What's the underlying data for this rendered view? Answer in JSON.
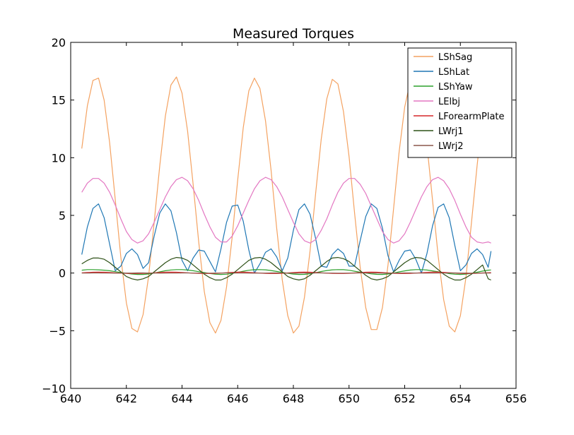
{
  "chart_data": {
    "type": "line",
    "title": "Measured Torques",
    "xlabel": "",
    "ylabel": "",
    "xlim": [
      640,
      656
    ],
    "ylim": [
      -10,
      20
    ],
    "xticks": [
      640,
      642,
      644,
      646,
      648,
      650,
      652,
      654,
      656
    ],
    "yticks": [
      -10,
      -5,
      0,
      5,
      10,
      15,
      20
    ],
    "xtick_labels": [
      "640",
      "642",
      "644",
      "646",
      "648",
      "650",
      "652",
      "654",
      "656"
    ],
    "ytick_labels": [
      "−10",
      "−5",
      "0",
      "5",
      "10",
      "15",
      "20"
    ],
    "grid": false,
    "legend_position": "top-right",
    "x": [
      640.4,
      640.6,
      640.8,
      641.0,
      641.2,
      641.4,
      641.6,
      641.8,
      642.0,
      642.2,
      642.4,
      642.6,
      642.8,
      643.0,
      643.2,
      643.4,
      643.6,
      643.8,
      644.0,
      644.2,
      644.4,
      644.6,
      644.8,
      645.0,
      645.2,
      645.4,
      645.6,
      645.8,
      646.0,
      646.2,
      646.4,
      646.6,
      646.8,
      647.0,
      647.2,
      647.4,
      647.6,
      647.8,
      648.0,
      648.2,
      648.4,
      648.6,
      648.8,
      649.0,
      649.2,
      649.4,
      649.6,
      649.8,
      650.0,
      650.2,
      650.4,
      650.6,
      650.8,
      651.0,
      651.2,
      651.4,
      651.6,
      651.8,
      652.0,
      652.2,
      652.4,
      652.6,
      652.8,
      653.0,
      653.2,
      653.4,
      653.6,
      653.8,
      654.0,
      654.2,
      654.4,
      654.6,
      654.8,
      655.0,
      655.1
    ],
    "series": [
      {
        "name": "LShSag",
        "color": "#f4a261",
        "values": [
          10.8,
          14.5,
          16.7,
          16.9,
          15.0,
          11.3,
          6.4,
          1.4,
          -2.6,
          -4.8,
          -5.1,
          -3.6,
          -0.3,
          4.4,
          9.3,
          13.6,
          16.3,
          17.0,
          15.6,
          12.3,
          7.7,
          2.7,
          -1.6,
          -4.3,
          -5.2,
          -4.1,
          -1.2,
          3.1,
          8.1,
          12.6,
          15.8,
          16.9,
          16.0,
          13.2,
          8.9,
          3.9,
          -0.6,
          -3.7,
          -5.2,
          -4.6,
          -2.1,
          1.9,
          6.9,
          11.6,
          15.1,
          16.8,
          16.4,
          14.0,
          10.1,
          5.2,
          0.5,
          -3.0,
          -4.9,
          -4.9,
          -3.0,
          0.7,
          5.6,
          10.5,
          14.4,
          16.6,
          16.6,
          14.7,
          11.1,
          6.3,
          1.5,
          -2.3,
          -4.6,
          -5.1,
          -3.7,
          -0.4,
          4.4,
          9.3,
          13.6,
          16.3,
          12.6
        ]
      },
      {
        "name": "LShLat",
        "color": "#1f77b4",
        "values": [
          1.6,
          4.0,
          5.6,
          6.0,
          4.8,
          2.5,
          0.2,
          0.6,
          1.7,
          2.1,
          1.6,
          0.4,
          0.9,
          3.2,
          5.2,
          6.0,
          5.4,
          3.5,
          1.1,
          0.2,
          1.3,
          2.0,
          1.9,
          1.0,
          0.1,
          2.1,
          4.4,
          5.8,
          5.9,
          4.5,
          2.0,
          0.0,
          0.8,
          1.8,
          2.1,
          1.4,
          0.2,
          1.3,
          3.7,
          5.5,
          6.0,
          5.1,
          3.0,
          0.6,
          0.5,
          1.6,
          2.1,
          1.7,
          0.6,
          0.6,
          2.8,
          4.9,
          6.0,
          5.6,
          3.9,
          1.5,
          0.1,
          1.1,
          1.9,
          2.0,
          1.2,
          0.0,
          1.7,
          4.1,
          5.7,
          6.0,
          4.8,
          2.4,
          0.2,
          0.7,
          1.7,
          2.1,
          1.6,
          0.5,
          1.9
        ]
      },
      {
        "name": "LShYaw",
        "color": "#2ca02c",
        "values": [
          0.25,
          0.3,
          0.3,
          0.28,
          0.25,
          0.2,
          0.12,
          0.05,
          -0.02,
          -0.08,
          -0.12,
          -0.12,
          -0.08,
          0.0,
          0.1,
          0.2,
          0.27,
          0.3,
          0.3,
          0.26,
          0.2,
          0.12,
          0.04,
          -0.04,
          -0.1,
          -0.12,
          -0.1,
          -0.04,
          0.06,
          0.16,
          0.24,
          0.29,
          0.3,
          0.28,
          0.22,
          0.14,
          0.06,
          -0.02,
          -0.09,
          -0.12,
          -0.11,
          -0.06,
          0.03,
          0.13,
          0.22,
          0.28,
          0.3,
          0.29,
          0.24,
          0.16,
          0.08,
          0.0,
          -0.07,
          -0.11,
          -0.12,
          -0.08,
          0.0,
          0.1,
          0.19,
          0.26,
          0.3,
          0.3,
          0.26,
          0.19,
          0.11,
          0.03,
          -0.05,
          -0.1,
          -0.12,
          -0.09,
          -0.02,
          0.07,
          0.17,
          0.25,
          0.27
        ]
      },
      {
        "name": "LElbj",
        "color": "#e377c2",
        "values": [
          7.0,
          7.8,
          8.2,
          8.2,
          7.8,
          7.0,
          5.9,
          4.7,
          3.6,
          2.9,
          2.6,
          2.8,
          3.4,
          4.4,
          5.5,
          6.6,
          7.5,
          8.1,
          8.3,
          8.0,
          7.3,
          6.3,
          5.1,
          4.0,
          3.1,
          2.7,
          2.7,
          3.2,
          4.1,
          5.2,
          6.3,
          7.3,
          8.0,
          8.3,
          8.1,
          7.5,
          6.6,
          5.5,
          4.4,
          3.4,
          2.8,
          2.6,
          2.9,
          3.7,
          4.7,
          5.9,
          7.0,
          7.8,
          8.2,
          8.2,
          7.7,
          6.9,
          5.8,
          4.7,
          3.6,
          2.9,
          2.6,
          2.8,
          3.4,
          4.4,
          5.5,
          6.6,
          7.5,
          8.1,
          8.3,
          8.0,
          7.3,
          6.3,
          5.1,
          4.0,
          3.1,
          2.7,
          2.6,
          2.7,
          2.6
        ]
      },
      {
        "name": "LForearmPlate",
        "color": "#d62728",
        "values": [
          0.02,
          0.05,
          0.07,
          0.08,
          0.07,
          0.05,
          0.02,
          -0.01,
          -0.03,
          -0.04,
          -0.04,
          -0.03,
          -0.01,
          0.02,
          0.05,
          0.07,
          0.08,
          0.07,
          0.05,
          0.02,
          -0.01,
          -0.03,
          -0.04,
          -0.04,
          -0.03,
          0.0,
          0.03,
          0.06,
          0.08,
          0.08,
          0.06,
          0.03,
          0.0,
          -0.03,
          -0.04,
          -0.04,
          -0.02,
          0.01,
          0.04,
          0.07,
          0.08,
          0.07,
          0.05,
          0.02,
          -0.01,
          -0.03,
          -0.04,
          -0.04,
          -0.02,
          0.01,
          0.04,
          0.07,
          0.08,
          0.07,
          0.04,
          0.01,
          -0.02,
          -0.04,
          -0.04,
          -0.03,
          0.0,
          0.03,
          0.06,
          0.08,
          0.08,
          0.06,
          0.03,
          0.0,
          -0.03,
          -0.04,
          -0.04,
          -0.02,
          0.01,
          0.03,
          0.04
        ]
      },
      {
        "name": "LWrj1",
        "color": "#2d5016",
        "values": [
          0.8,
          1.1,
          1.3,
          1.3,
          1.2,
          0.9,
          0.5,
          0.1,
          -0.3,
          -0.5,
          -0.6,
          -0.5,
          -0.3,
          0.1,
          0.5,
          0.9,
          1.2,
          1.35,
          1.3,
          1.1,
          0.7,
          0.3,
          -0.1,
          -0.4,
          -0.6,
          -0.6,
          -0.4,
          -0.1,
          0.3,
          0.7,
          1.1,
          1.3,
          1.35,
          1.2,
          0.9,
          0.5,
          0.1,
          -0.3,
          -0.5,
          -0.6,
          -0.5,
          -0.2,
          0.2,
          0.6,
          1.0,
          1.3,
          1.35,
          1.25,
          1.0,
          0.6,
          0.2,
          -0.2,
          -0.5,
          -0.6,
          -0.5,
          -0.3,
          0.1,
          0.5,
          0.9,
          1.2,
          1.35,
          1.3,
          1.1,
          0.7,
          0.3,
          -0.1,
          -0.4,
          -0.6,
          -0.6,
          -0.4,
          -0.1,
          0.3,
          0.7,
          -0.5,
          -0.6
        ]
      },
      {
        "name": "LWrj2",
        "color": "#8c564b",
        "values": [
          0.0,
          0.0,
          0.01,
          0.01,
          0.0,
          0.0,
          -0.01,
          -0.01,
          0.0,
          0.0,
          0.01,
          0.01,
          0.0,
          0.0,
          -0.01,
          -0.01,
          0.0,
          0.0,
          0.01,
          0.01,
          0.0,
          0.0,
          -0.01,
          -0.01,
          0.0,
          0.0,
          0.01,
          0.01,
          0.0,
          0.0,
          -0.01,
          -0.01,
          0.0,
          0.0,
          0.01,
          0.01,
          0.0,
          0.0,
          -0.01,
          -0.01,
          0.0,
          0.0,
          0.01,
          0.01,
          0.0,
          0.0,
          -0.01,
          -0.01,
          0.0,
          0.0,
          0.01,
          0.01,
          0.0,
          0.0,
          -0.01,
          -0.01,
          0.0,
          0.0,
          0.01,
          0.01,
          0.0,
          0.0,
          -0.01,
          -0.01,
          0.0,
          0.0,
          0.01,
          0.01,
          0.0,
          0.0,
          -0.01,
          -0.01,
          0.0,
          0.0,
          0.0
        ]
      }
    ]
  }
}
